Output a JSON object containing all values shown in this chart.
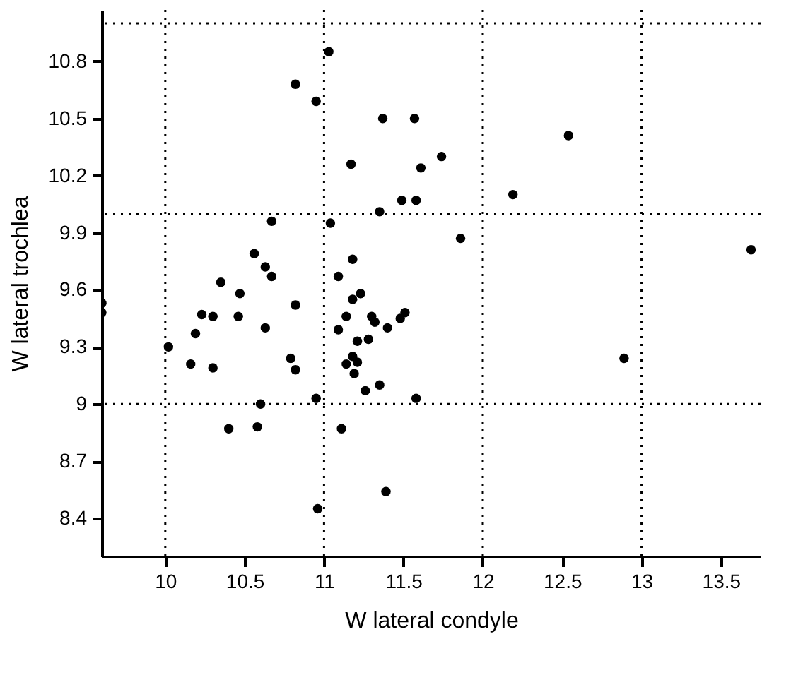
{
  "chart_data": {
    "type": "scatter",
    "xlabel": "W lateral condyle",
    "ylabel": "W lateral trochlea",
    "x": [
      9.6,
      9.6,
      10.02,
      10.16,
      10.19,
      10.23,
      10.3,
      10.3,
      10.35,
      10.4,
      10.46,
      10.47,
      10.56,
      10.58,
      10.6,
      10.63,
      10.63,
      10.67,
      10.67,
      10.79,
      10.82,
      10.82,
      10.82,
      10.95,
      10.95,
      10.96,
      11.03,
      11.04,
      11.09,
      11.09,
      11.11,
      11.14,
      11.14,
      11.17,
      11.18,
      11.18,
      11.18,
      11.19,
      11.21,
      11.21,
      11.23,
      11.26,
      11.28,
      11.3,
      11.32,
      11.35,
      11.35,
      11.37,
      11.39,
      11.4,
      11.48,
      11.51,
      11.49,
      11.57,
      11.58,
      11.58,
      11.61,
      11.74,
      11.86,
      12.19,
      12.54,
      12.89,
      13.69
    ],
    "series": [
      {
        "color": "#000000",
        "values": [
          9.53,
          9.48,
          9.3,
          9.21,
          9.37,
          9.47,
          9.46,
          9.19,
          9.64,
          8.87,
          9.46,
          9.58,
          9.79,
          8.88,
          9.0,
          9.72,
          9.4,
          9.67,
          9.96,
          9.24,
          10.68,
          9.52,
          9.18,
          10.59,
          9.03,
          8.45,
          10.85,
          9.95,
          9.67,
          9.39,
          8.87,
          9.46,
          9.21,
          10.26,
          9.76,
          9.55,
          9.25,
          9.16,
          9.33,
          9.22,
          9.58,
          9.07,
          9.34,
          9.46,
          9.43,
          10.01,
          9.1,
          10.5,
          8.54,
          9.4,
          9.45,
          9.48,
          10.07,
          10.5,
          10.07,
          9.03,
          10.24,
          10.3,
          9.87,
          10.1,
          10.41,
          9.24,
          9.81
        ]
      }
    ],
    "xlim": [
      9.6,
      13.75
    ],
    "xticks": [
      10,
      10.5,
      11,
      11.5,
      12,
      12.5,
      13,
      13.5
    ],
    "ylim": [
      8.2,
      11.07
    ],
    "yticks": [
      8.4,
      8.7,
      9,
      9.3,
      9.6,
      9.9,
      10.2,
      10.5,
      10.8
    ],
    "marker": "circle",
    "grid": false,
    "ref_lines": [
      {
        "axis": "x",
        "value": 10,
        "color": "#000000",
        "line_style": "dotted"
      },
      {
        "axis": "x",
        "value": 11,
        "color": "#000000",
        "line_style": "dotted"
      },
      {
        "axis": "x",
        "value": 12,
        "color": "#000000",
        "line_style": "dotted"
      },
      {
        "axis": "x",
        "value": 13,
        "color": "#000000",
        "line_style": "dotted"
      },
      {
        "axis": "y",
        "value": 9,
        "color": "#000000",
        "line_style": "dotted"
      },
      {
        "axis": "y",
        "value": 10,
        "color": "#000000",
        "line_style": "dotted"
      },
      {
        "axis": "y",
        "value": 11,
        "color": "#000000",
        "line_style": "dotted"
      }
    ]
  }
}
